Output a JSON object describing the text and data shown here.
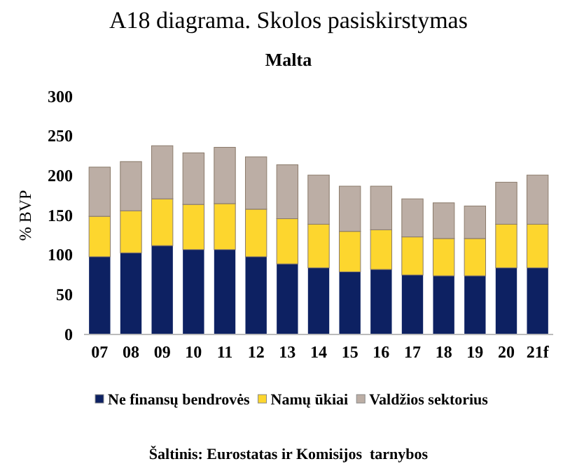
{
  "chart_data": {
    "type": "bar",
    "title": "A18 diagrama. Skolos pasiskirstymas",
    "subtitle": "Malta",
    "ylabel": "% BVP",
    "categories": [
      "07",
      "08",
      "09",
      "10",
      "11",
      "12",
      "13",
      "14",
      "15",
      "16",
      "17",
      "18",
      "19",
      "20",
      "21f"
    ],
    "stacked": true,
    "series": [
      {
        "name": "Ne finansų bendrovės",
        "color": "#0d2162",
        "values": [
          98,
          103,
          112,
          107,
          107,
          98,
          89,
          84,
          79,
          82,
          75,
          74,
          74,
          84,
          84
        ]
      },
      {
        "name": "Namų ūkiai",
        "color": "#fdd62e",
        "values": [
          51,
          53,
          59,
          57,
          58,
          60,
          57,
          55,
          51,
          50,
          48,
          47,
          47,
          55,
          55
        ]
      },
      {
        "name": "Valdžios sektorius",
        "color": "#bcaea5",
        "values": [
          62,
          62,
          67,
          65,
          71,
          66,
          68,
          62,
          57,
          55,
          48,
          45,
          41,
          53,
          62
        ]
      }
    ],
    "ylim": [
      0,
      300
    ],
    "yticks": [
      0,
      50,
      100,
      150,
      200,
      250,
      300
    ],
    "grid": false,
    "legend": "bottom",
    "annotations": [
      "Šaltinis: Eurostatas ir Komisijos  tarnybos"
    ]
  }
}
